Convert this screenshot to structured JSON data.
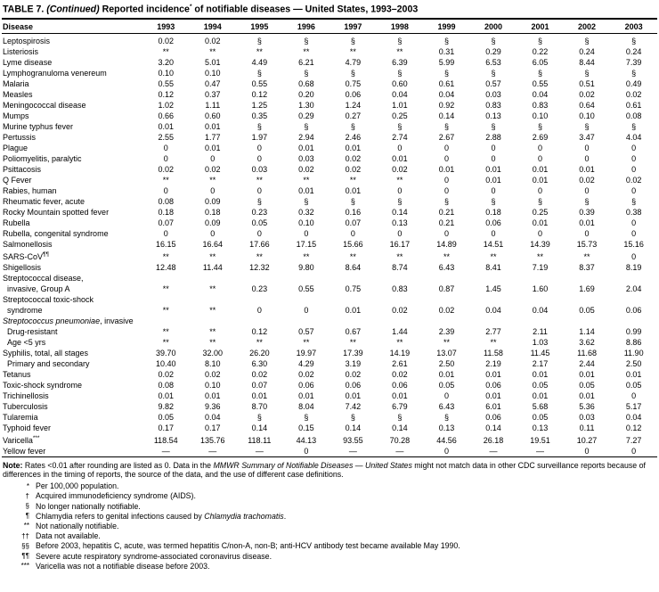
{
  "title": {
    "label": "TABLE 7.",
    "continued": " (Continued) ",
    "text": "Reported incidence",
    "sup": "*",
    "text2": " of notifiable diseases — United States, 1993–2003"
  },
  "colors": {
    "text": "#000000",
    "background": "#ffffff",
    "rule": "#000000"
  },
  "table": {
    "disease_header": "Disease",
    "years": [
      "1993",
      "1994",
      "1995",
      "1996",
      "1997",
      "1998",
      "1999",
      "2000",
      "2001",
      "2002",
      "2003"
    ],
    "rows": [
      {
        "label": "Leptospirosis",
        "values": [
          "0.02",
          "0.02",
          "§",
          "§",
          "§",
          "§",
          "§",
          "§",
          "§",
          "§",
          "§"
        ]
      },
      {
        "label": "Listeriosis",
        "values": [
          "**",
          "**",
          "**",
          "**",
          "**",
          "**",
          "0.31",
          "0.29",
          "0.22",
          "0.24",
          "0.24"
        ]
      },
      {
        "label": "Lyme disease",
        "values": [
          "3.20",
          "5.01",
          "4.49",
          "6.21",
          "4.79",
          "6.39",
          "5.99",
          "6.53",
          "6.05",
          "8.44",
          "7.39"
        ]
      },
      {
        "label": "Lymphogranuloma venereum",
        "values": [
          "0.10",
          "0.10",
          "§",
          "§",
          "§",
          "§",
          "§",
          "§",
          "§",
          "§",
          "§"
        ]
      },
      {
        "label": "Malaria",
        "values": [
          "0.55",
          "0.47",
          "0.55",
          "0.68",
          "0.75",
          "0.60",
          "0.61",
          "0.57",
          "0.55",
          "0.51",
          "0.49"
        ]
      },
      {
        "label": "Measles",
        "values": [
          "0.12",
          "0.37",
          "0.12",
          "0.20",
          "0.06",
          "0.04",
          "0.04",
          "0.03",
          "0.04",
          "0.02",
          "0.02"
        ]
      },
      {
        "label": "Meningococcal disease",
        "values": [
          "1.02",
          "1.11",
          "1.25",
          "1.30",
          "1.24",
          "1.01",
          "0.92",
          "0.83",
          "0.83",
          "0.64",
          "0.61"
        ]
      },
      {
        "label": "Mumps",
        "values": [
          "0.66",
          "0.60",
          "0.35",
          "0.29",
          "0.27",
          "0.25",
          "0.14",
          "0.13",
          "0.10",
          "0.10",
          "0.08"
        ]
      },
      {
        "label": "Murine typhus fever",
        "values": [
          "0.01",
          "0.01",
          "§",
          "§",
          "§",
          "§",
          "§",
          "§",
          "§",
          "§",
          "§"
        ]
      },
      {
        "label": "Pertussis",
        "values": [
          "2.55",
          "1.77",
          "1.97",
          "2.94",
          "2.46",
          "2.74",
          "2.67",
          "2.88",
          "2.69",
          "3.47",
          "4.04"
        ]
      },
      {
        "label": "Plague",
        "values": [
          "0",
          "0.01",
          "0",
          "0.01",
          "0.01",
          "0",
          "0",
          "0",
          "0",
          "0",
          "0"
        ]
      },
      {
        "label": "Poliomyelitis, paralytic",
        "values": [
          "0",
          "0",
          "0",
          "0.03",
          "0.02",
          "0.01",
          "0",
          "0",
          "0",
          "0",
          "0"
        ]
      },
      {
        "label": "Psittacosis",
        "values": [
          "0.02",
          "0.02",
          "0.03",
          "0.02",
          "0.02",
          "0.02",
          "0.01",
          "0.01",
          "0.01",
          "0.01",
          "0"
        ]
      },
      {
        "label": "Q Fever",
        "values": [
          "**",
          "**",
          "**",
          "**",
          "**",
          "**",
          "0",
          "0.01",
          "0.01",
          "0.02",
          "0.02"
        ]
      },
      {
        "label": "Rabies, human",
        "values": [
          "0",
          "0",
          "0",
          "0.01",
          "0.01",
          "0",
          "0",
          "0",
          "0",
          "0",
          "0"
        ]
      },
      {
        "label": "Rheumatic fever, acute",
        "values": [
          "0.08",
          "0.09",
          "§",
          "§",
          "§",
          "§",
          "§",
          "§",
          "§",
          "§",
          "§"
        ]
      },
      {
        "label": "Rocky Mountain spotted fever",
        "values": [
          "0.18",
          "0.18",
          "0.23",
          "0.32",
          "0.16",
          "0.14",
          "0.21",
          "0.18",
          "0.25",
          "0.39",
          "0.38"
        ]
      },
      {
        "label": "Rubella",
        "values": [
          "0.07",
          "0.09",
          "0.05",
          "0.10",
          "0.07",
          "0.13",
          "0.21",
          "0.06",
          "0.01",
          "0.01",
          "0"
        ]
      },
      {
        "label": "Rubella, congenital syndrome",
        "values": [
          "0",
          "0",
          "0",
          "0",
          "0",
          "0",
          "0",
          "0",
          "0",
          "0",
          "0"
        ]
      },
      {
        "label": "Salmonellosis",
        "values": [
          "16.15",
          "16.64",
          "17.66",
          "17.15",
          "15.66",
          "16.17",
          "14.89",
          "14.51",
          "14.39",
          "15.73",
          "15.16"
        ]
      },
      {
        "label": "SARS-CoV",
        "sup": "¶¶",
        "values": [
          "**",
          "**",
          "**",
          "**",
          "**",
          "**",
          "**",
          "**",
          "**",
          "**",
          "0"
        ]
      },
      {
        "label": "Shigellosis",
        "values": [
          "12.48",
          "11.44",
          "12.32",
          "9.80",
          "8.64",
          "8.74",
          "6.43",
          "8.41",
          "7.19",
          "8.37",
          "8.19"
        ]
      },
      {
        "label": "Streptococcal disease,",
        "label2": "invasive, Group A",
        "values": [
          "**",
          "**",
          "0.23",
          "0.55",
          "0.75",
          "0.83",
          "0.87",
          "1.45",
          "1.60",
          "1.69",
          "2.04"
        ]
      },
      {
        "label": "Streptococcal toxic-shock",
        "label2": "syndrome",
        "values": [
          "**",
          "**",
          "0",
          "0",
          "0.01",
          "0.02",
          "0.02",
          "0.04",
          "0.04",
          "0.05",
          "0.06"
        ]
      },
      {
        "header": true,
        "label_italic": "Streptococcus pneumoniae",
        "label": ", invasive"
      },
      {
        "label": "Drug-resistant",
        "indent": true,
        "values": [
          "**",
          "**",
          "0.12",
          "0.57",
          "0.67",
          "1.44",
          "2.39",
          "2.77",
          "2.11",
          "1.14",
          "0.99"
        ]
      },
      {
        "label": "Age <5 yrs",
        "indent": true,
        "values": [
          "**",
          "**",
          "**",
          "**",
          "**",
          "**",
          "**",
          "**",
          "1.03",
          "3.62",
          "8.86"
        ]
      },
      {
        "label": "Syphilis, total, all stages",
        "values": [
          "39.70",
          "32.00",
          "26.20",
          "19.97",
          "17.39",
          "14.19",
          "13.07",
          "11.58",
          "11.45",
          "11.68",
          "11.90"
        ]
      },
      {
        "label": "Primary and secondary",
        "indent": true,
        "values": [
          "10.40",
          "8.10",
          "6.30",
          "4.29",
          "3.19",
          "2.61",
          "2.50",
          "2.19",
          "2.17",
          "2.44",
          "2.50"
        ]
      },
      {
        "label": "Tetanus",
        "values": [
          "0.02",
          "0.02",
          "0.02",
          "0.02",
          "0.02",
          "0.02",
          "0.01",
          "0.01",
          "0.01",
          "0.01",
          "0.01"
        ]
      },
      {
        "label": "Toxic-shock syndrome",
        "values": [
          "0.08",
          "0.10",
          "0.07",
          "0.06",
          "0.06",
          "0.06",
          "0.05",
          "0.06",
          "0.05",
          "0.05",
          "0.05"
        ]
      },
      {
        "label": "Trichinellosis",
        "values": [
          "0.01",
          "0.01",
          "0.01",
          "0.01",
          "0.01",
          "0.01",
          "0",
          "0.01",
          "0.01",
          "0.01",
          "0"
        ]
      },
      {
        "label": "Tuberculosis",
        "values": [
          "9.82",
          "9.36",
          "8.70",
          "8.04",
          "7.42",
          "6.79",
          "6.43",
          "6.01",
          "5.68",
          "5.36",
          "5.17"
        ]
      },
      {
        "label": "Tularemia",
        "values": [
          "0.05",
          "0.04",
          "§",
          "§",
          "§",
          "§",
          "§",
          "0.06",
          "0.05",
          "0.03",
          "0.04"
        ]
      },
      {
        "label": "Typhoid fever",
        "values": [
          "0.17",
          "0.17",
          "0.14",
          "0.15",
          "0.14",
          "0.14",
          "0.13",
          "0.14",
          "0.13",
          "0.11",
          "0.12"
        ]
      },
      {
        "label": "Varicella",
        "sup": "***",
        "values": [
          "118.54",
          "135.76",
          "118.11",
          "44.13",
          "93.55",
          "70.28",
          "44.56",
          "26.18",
          "19.51",
          "10.27",
          "7.27"
        ]
      },
      {
        "label": "Yellow fever",
        "values": [
          "—",
          "—",
          "—",
          "0",
          "—",
          "—",
          "0",
          "—",
          "—",
          "0",
          "0"
        ]
      }
    ]
  },
  "note": {
    "label": "Note:",
    "pre": " Rates <0.01 after rounding are listed as 0. Data in the ",
    "italic": "MMWR Summary of Notifiable Diseases — United States",
    "post": " might not match data in other CDC surveillance reports because of differences in the timing of reports, the source of the data, and the use of different case definitions."
  },
  "footnotes": [
    {
      "sym": "*",
      "pre": "Per 100,000 population."
    },
    {
      "sym": "†",
      "pre": "Acquired immunodeficiency syndrome (AIDS)."
    },
    {
      "sym": "§",
      "pre": "No longer nationally notifiable."
    },
    {
      "sym": "¶",
      "pre": "Chlamydia refers to genital infections caused by ",
      "italic": "Chlamydia trachomatis",
      "post": "."
    },
    {
      "sym": "**",
      "pre": "Not nationally notifiable."
    },
    {
      "sym": "††",
      "pre": "Data not available."
    },
    {
      "sym": "§§",
      "pre": "Before 2003, hepatitis C, acute, was termed hepatitis C/non-A, non-B; anti-HCV antibody test became available May 1990."
    },
    {
      "sym": "¶¶",
      "pre": "Severe acute respiratory syndrome-associated coronavirus disease."
    },
    {
      "sym": "***",
      "pre": "Varicella was not a notifiable disease before 2003."
    }
  ]
}
